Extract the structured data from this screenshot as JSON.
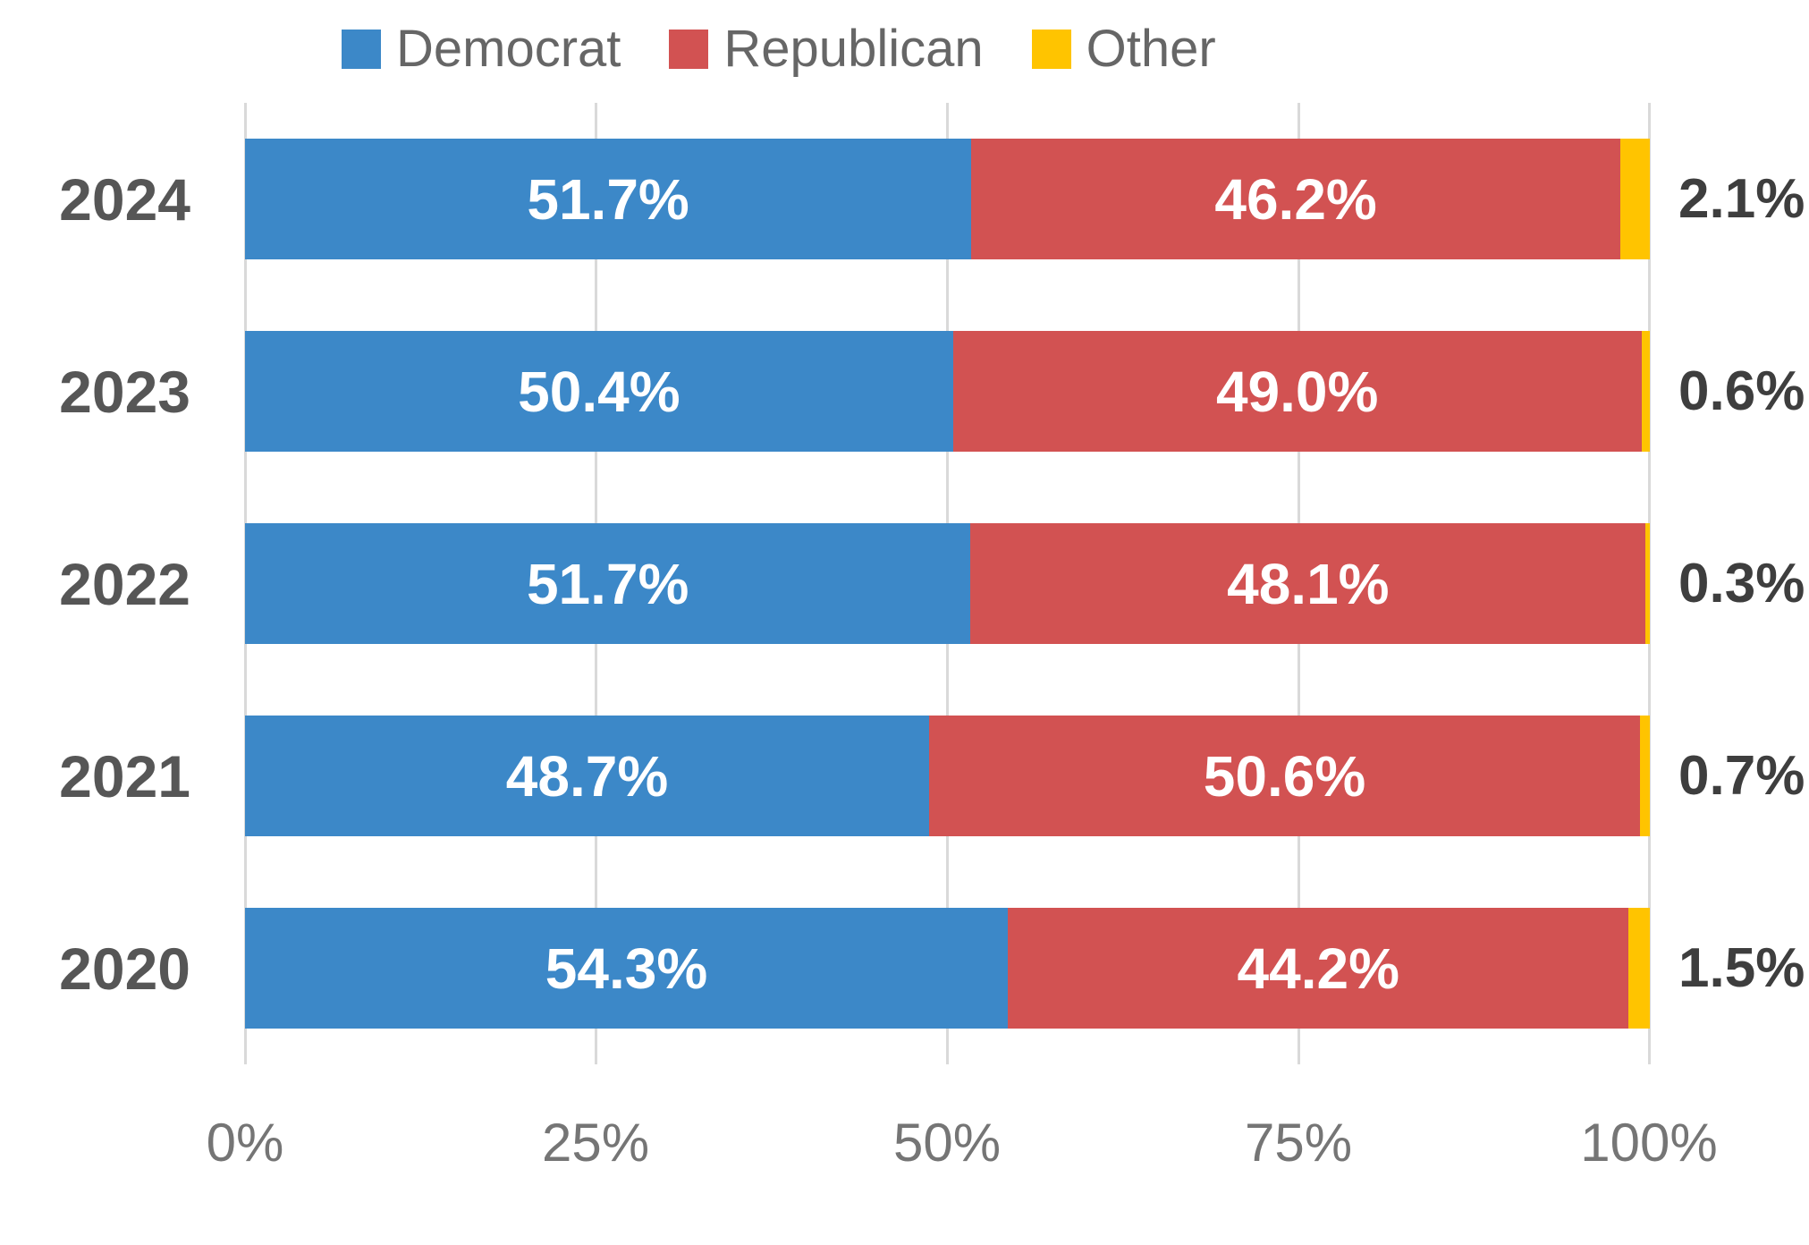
{
  "chart_data": {
    "type": "bar",
    "orientation": "horizontal",
    "stacked": true,
    "title": "",
    "categories": [
      "2024",
      "2023",
      "2022",
      "2021",
      "2020"
    ],
    "series": [
      {
        "name": "Democrat",
        "color": "#3c88c8",
        "values": [
          51.7,
          50.4,
          51.7,
          48.7,
          54.3
        ]
      },
      {
        "name": "Republican",
        "color": "#d25252",
        "values": [
          46.2,
          49.0,
          48.1,
          50.6,
          44.2
        ]
      },
      {
        "name": "Other",
        "color": "#ffc400",
        "values": [
          2.1,
          0.6,
          0.3,
          0.7,
          1.5
        ]
      }
    ],
    "xlabel": "",
    "ylabel": "",
    "xlim": [
      0,
      100
    ],
    "x_ticks": [
      "0%",
      "25%",
      "50%",
      "75%",
      "100%"
    ],
    "grid": "vertical",
    "legend_position": "top",
    "value_label_placement": "Democrat and Republican inside segments, Other outside right of bar"
  },
  "legend": {
    "items": [
      {
        "label": "Democrat",
        "color": "#3c88c8"
      },
      {
        "label": "Republican",
        "color": "#d25252"
      },
      {
        "label": "Other",
        "color": "#ffc400"
      }
    ]
  },
  "rows": [
    {
      "year": "2024",
      "democrat": {
        "value": 51.7,
        "label": "51.7%"
      },
      "republican": {
        "value": 46.2,
        "label": "46.2%"
      },
      "other": {
        "value": 2.1,
        "label": "2.1%"
      }
    },
    {
      "year": "2023",
      "democrat": {
        "value": 50.4,
        "label": "50.4%"
      },
      "republican": {
        "value": 49.0,
        "label": "49.0%"
      },
      "other": {
        "value": 0.6,
        "label": "0.6%"
      }
    },
    {
      "year": "2022",
      "democrat": {
        "value": 51.7,
        "label": "51.7%"
      },
      "republican": {
        "value": 48.1,
        "label": "48.1%"
      },
      "other": {
        "value": 0.3,
        "label": "0.3%"
      }
    },
    {
      "year": "2021",
      "democrat": {
        "value": 48.7,
        "label": "48.7%"
      },
      "republican": {
        "value": 50.6,
        "label": "50.6%"
      },
      "other": {
        "value": 0.7,
        "label": "0.7%"
      }
    },
    {
      "year": "2020",
      "democrat": {
        "value": 54.3,
        "label": "54.3%"
      },
      "republican": {
        "value": 44.2,
        "label": "44.2%"
      },
      "other": {
        "value": 1.5,
        "label": "1.5%"
      }
    }
  ],
  "x_axis": {
    "ticks": [
      "0%",
      "25%",
      "50%",
      "75%",
      "100%"
    ]
  },
  "colors": {
    "democrat": "#3c88c8",
    "republican": "#d25252",
    "other": "#ffc400",
    "gridline": "#d9d9d9",
    "year_label": "#565656",
    "outside_label": "#3e3e3e",
    "axis_label": "#757575",
    "value_label": "#ffffff",
    "legend_text": "#666666",
    "background": "#ffffff"
  }
}
